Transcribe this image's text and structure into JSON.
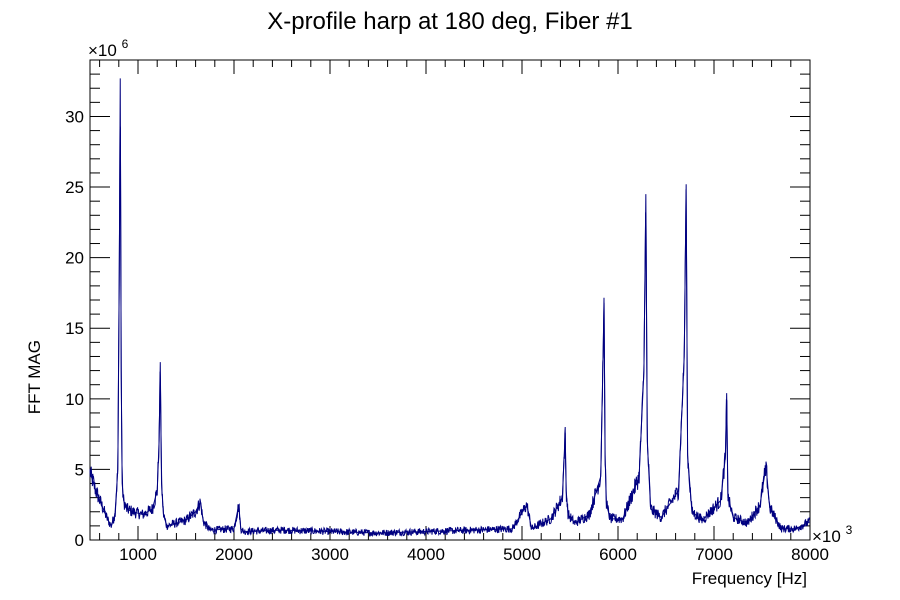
{
  "chart_data": {
    "type": "line",
    "title": "X-profile harp at 180 deg, Fiber #1",
    "xlabel": "Frequency [Hz]",
    "ylabel": "FFT MAG",
    "x_multiplier": "×10",
    "x_multiplier_exp": "3",
    "y_multiplier": "×10",
    "y_multiplier_exp": "6",
    "xlim": [
      500,
      8000
    ],
    "ylim": [
      0,
      34
    ],
    "x_ticks": [
      "1000",
      "2000",
      "3000",
      "4000",
      "5000",
      "6000",
      "7000",
      "8000"
    ],
    "y_ticks": [
      "0",
      "5",
      "10",
      "15",
      "20",
      "25",
      "30"
    ],
    "grid": false,
    "legend": "none",
    "color": "#000080",
    "series": [
      {
        "x": [
          500,
          560,
          620,
          680,
          720,
          760,
          790,
          805,
          815,
          825,
          835,
          850,
          880,
          950,
          1050,
          1150,
          1200,
          1220,
          1232,
          1245,
          1265,
          1300,
          1400,
          1500,
          1600,
          1650,
          1680,
          1750,
          2000,
          2050,
          2070,
          2100,
          2500,
          3000,
          3500,
          4000,
          4500,
          4900,
          5050,
          5100,
          5300,
          5420,
          5450,
          5460,
          5480,
          5550,
          5700,
          5820,
          5855,
          5865,
          5880,
          5920,
          6050,
          6220,
          6270,
          6290,
          6305,
          6340,
          6450,
          6630,
          6690,
          6710,
          6725,
          6770,
          6880,
          7070,
          7120,
          7132,
          7145,
          7200,
          7350,
          7480,
          7525,
          7545,
          7580,
          7700,
          7850,
          8000
        ],
        "y": [
          4.8,
          3.5,
          2.5,
          1.5,
          1.0,
          1.8,
          5.0,
          19.0,
          32.7,
          12.0,
          4.0,
          2.8,
          2.2,
          2.0,
          1.8,
          2.2,
          3.5,
          7.0,
          12.6,
          4.0,
          1.8,
          1.0,
          1.2,
          1.4,
          2.0,
          2.7,
          1.3,
          0.7,
          0.8,
          2.5,
          0.8,
          0.6,
          0.7,
          0.6,
          0.5,
          0.6,
          0.7,
          0.8,
          2.5,
          0.8,
          1.5,
          3.0,
          7.6,
          3.5,
          1.8,
          1.2,
          1.8,
          4.5,
          16.8,
          6.0,
          2.5,
          1.5,
          1.5,
          4.5,
          12.0,
          24.5,
          7.0,
          2.2,
          1.6,
          3.5,
          13.0,
          25.2,
          6.0,
          2.0,
          1.4,
          2.8,
          6.0,
          10.4,
          3.0,
          1.6,
          1.2,
          2.5,
          4.5,
          5.0,
          2.3,
          0.8,
          0.8,
          1.3
        ]
      }
    ]
  }
}
